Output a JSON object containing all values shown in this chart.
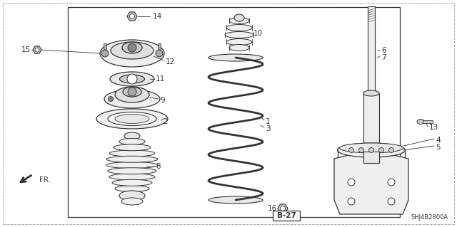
{
  "part_number": "SHJ4B2800A",
  "page_ref": "B-27",
  "bg_color": "#ffffff",
  "line_color": "#333333",
  "border_color": "#aaaaaa",
  "fig_width": 6.4,
  "fig_height": 3.19,
  "dpi": 100
}
